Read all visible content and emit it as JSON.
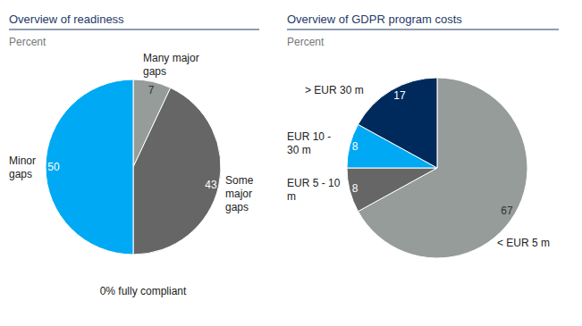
{
  "chart_data": [
    {
      "type": "pie",
      "title": "Overview of readiness",
      "subtitle": "Percent",
      "categories": [
        "Many major gaps",
        "Some major gaps",
        "Minor gaps"
      ],
      "values": [
        7,
        43,
        50
      ],
      "colors": [
        "#959c99",
        "#666666",
        "#00a9f4"
      ],
      "data_labels": true,
      "annotations": [
        "0% fully compliant"
      ]
    },
    {
      "type": "pie",
      "title": "Overview of GDPR program costs",
      "subtitle": "Percent",
      "categories": [
        "< EUR 5 m",
        "EUR 5 - 10 m",
        "EUR 10 - 30 m",
        "> EUR 30 m"
      ],
      "values": [
        67,
        8,
        8,
        17
      ],
      "colors": [
        "#959c99",
        "#666666",
        "#00a9f4",
        "#002a5c"
      ],
      "data_labels": true
    }
  ]
}
